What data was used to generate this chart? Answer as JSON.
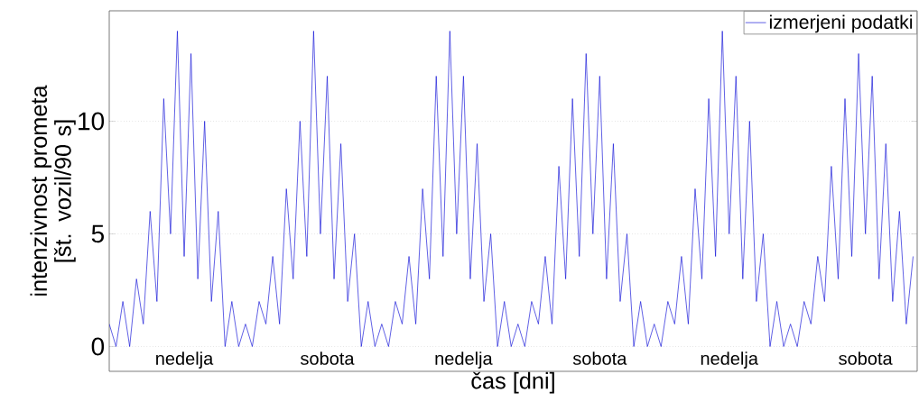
{
  "chart_data": {
    "type": "line",
    "xlabel": "čas [dni]",
    "ylabel": "intenzivnost prometa [št. vozil/90 s]",
    "categories": [
      null,
      null,
      null,
      null,
      null,
      null,
      null,
      null,
      null,
      null,
      null,
      "nedelja",
      null,
      null,
      null,
      null,
      null,
      null,
      null,
      null,
      null,
      null,
      null,
      null,
      null,
      null,
      null,
      null,
      null,
      null,
      null,
      null,
      "sobota",
      null,
      null,
      null,
      null,
      null,
      null,
      null,
      null,
      null,
      null,
      null,
      null,
      null,
      null,
      null,
      null,
      null,
      null,
      null,
      "nedelja",
      null,
      null,
      null,
      null,
      null,
      null,
      null,
      null,
      null,
      null,
      null,
      null,
      null,
      null,
      null,
      null,
      null,
      null,
      null,
      "sobota",
      null,
      null,
      null,
      null,
      null,
      null,
      null,
      null,
      null,
      null,
      null,
      null,
      null,
      null,
      null,
      null,
      null,
      null,
      "nedelja",
      null,
      null,
      null,
      null,
      null,
      null,
      null,
      null,
      null,
      null,
      null,
      null,
      null,
      null,
      null,
      null,
      null,
      null,
      null,
      "sobota",
      null,
      null,
      null,
      null,
      null,
      null,
      null
    ],
    "series": [
      {
        "name": "izmerjeni podatki",
        "color": "#1010d8",
        "values": [
          1,
          0,
          2,
          0,
          3,
          1,
          6,
          2,
          11,
          5,
          14,
          4,
          13,
          3,
          10,
          2,
          6,
          0,
          2,
          0,
          1,
          0,
          2,
          1,
          4,
          1,
          7,
          3,
          10,
          4,
          14,
          5,
          12,
          3,
          9,
          2,
          5,
          0,
          2,
          0,
          1,
          0,
          2,
          1,
          4,
          1,
          7,
          3,
          12,
          4,
          14,
          5,
          12,
          3,
          9,
          2,
          5,
          0,
          2,
          0,
          1,
          0,
          2,
          1,
          4,
          1,
          8,
          3,
          11,
          4,
          13,
          5,
          12,
          3,
          9,
          2,
          5,
          0,
          2,
          0,
          1,
          0,
          2,
          1,
          4,
          1,
          7,
          3,
          11,
          4,
          14,
          5,
          12,
          3,
          10,
          2,
          5,
          0,
          2,
          0,
          1,
          0,
          2,
          1,
          4,
          2,
          8,
          3,
          11,
          4,
          13,
          5,
          12,
          3,
          9,
          2,
          6,
          1,
          4
        ]
      }
    ],
    "ylim": [
      -1.1,
      14.9
    ],
    "yticks": [
      0,
      5,
      10
    ],
    "grid": "y",
    "legend": "top right",
    "marker": "none",
    "line_style": "solid"
  }
}
